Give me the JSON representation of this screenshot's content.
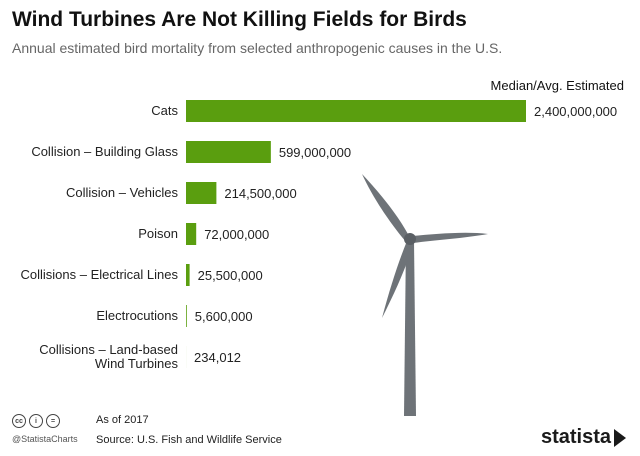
{
  "header": {
    "title": "Wind Turbines Are Not Killing Fields for Birds",
    "subtitle": "Annual estimated bird mortality from selected anthropogenic causes in the U.S.",
    "column_header": "Median/Avg. Estimated"
  },
  "chart_data": {
    "type": "bar",
    "orientation": "horizontal",
    "categories": [
      "Cats",
      "Collision – Building Glass",
      "Collision – Vehicles",
      "Poison",
      "Collisions – Electrical Lines",
      "Electrocutions",
      "Collisions – Land-based Wind Turbines"
    ],
    "category_lines": [
      [
        "Cats"
      ],
      [
        "Collision – Building Glass"
      ],
      [
        "Collision – Vehicles"
      ],
      [
        "Poison"
      ],
      [
        "Collisions – Electrical Lines"
      ],
      [
        "Electrocutions"
      ],
      [
        "Collisions – Land-based",
        "Wind Turbines"
      ]
    ],
    "values": [
      2400000000,
      599000000,
      214500000,
      72000000,
      25500000,
      5600000,
      234012
    ],
    "value_labels": [
      "2,400,000,000",
      "599,000,000",
      "214,500,000",
      "72,000,000",
      "25,500,000",
      "5,600,000",
      "234,012"
    ],
    "xlim": [
      0,
      2400000000
    ],
    "grid": false,
    "bar_color": "#5a9e0f"
  },
  "footer": {
    "cc_icons": [
      "cc",
      "i",
      "="
    ],
    "handle": "@StatistaCharts",
    "as_of": "As of 2017",
    "source": "Source: U.S. Fish and Wildlife Service",
    "brand": "statista"
  },
  "colors": {
    "bar": "#5a9e0f",
    "turbine": "#6e7378",
    "text": "#222222",
    "subtitle": "#666666"
  },
  "icons": {
    "illustration": "wind-turbine-icon",
    "brand_mark": "statista-arrow-icon"
  }
}
